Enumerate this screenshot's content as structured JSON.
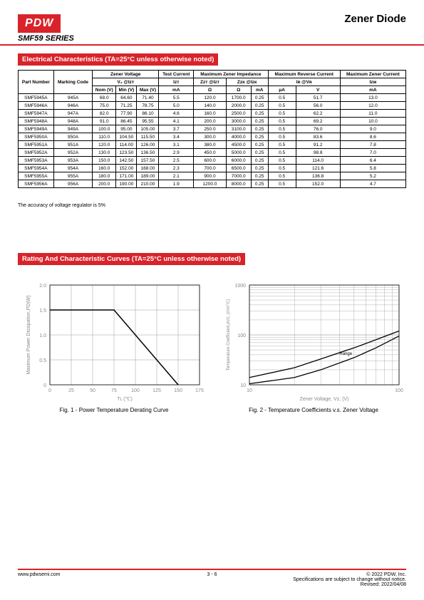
{
  "header": {
    "logo": "PDW",
    "title": "Zener Diode",
    "series": "SMF59 SERIES"
  },
  "section1": {
    "heading": "Electrical Characteristics (TA=25°C unless otherwise noted)"
  },
  "table": {
    "h_part": "Part Number",
    "h_mark": "Marking Code",
    "h_zv": "Zener Voltage",
    "h_test": "Test Current",
    "h_imp": "Maximum Zener Impedance",
    "h_rev": "Maximum Reverse Current",
    "h_max": "Maximum Zener Current",
    "h_vz": "V₂ @Iᴢᴛ",
    "h_izt": "Iᴢᴛ",
    "h_zzt": "Zᴢᴛ @Iᴢᴛ",
    "h_zzk": "Zᴢᴋ @Iᴢᴋ",
    "h_ir": "Iʀ @Vʀ",
    "h_izm": "Iᴢᴍ",
    "h_nom": "Nom (V)",
    "h_min": "Min (V)",
    "h_maxv": "Max (V)",
    "h_ma": "mA",
    "h_ohm": "Ω",
    "h_ua": "μA",
    "h_v": "V",
    "rows": [
      [
        "SMF5945A",
        "945A",
        "68.0",
        "64.60",
        "71.40",
        "5.5",
        "120.0",
        "1700.0",
        "0.25",
        "0.5",
        "51.7",
        "13.0"
      ],
      [
        "SMF5946A",
        "946A",
        "75.0",
        "71.25",
        "78.75",
        "5.0",
        "140.0",
        "2000.0",
        "0.25",
        "0.5",
        "56.0",
        "12.0"
      ],
      [
        "SMF5947A",
        "947A",
        "82.0",
        "77.90",
        "86.10",
        "4.6",
        "160.0",
        "2500.0",
        "0.25",
        "0.5",
        "62.2",
        "11.0"
      ],
      [
        "SMF5948A",
        "948A",
        "91.0",
        "86.45",
        "95.55",
        "4.1",
        "200.0",
        "3000.0",
        "0.25",
        "0.5",
        "69.2",
        "10.0"
      ],
      [
        "SMF5949A",
        "949A",
        "100.0",
        "95.00",
        "105.00",
        "3.7",
        "250.0",
        "3100.0",
        "0.25",
        "0.5",
        "76.0",
        "9.0"
      ],
      [
        "SMF5950A",
        "950A",
        "110.0",
        "104.50",
        "115.50",
        "3.4",
        "300.0",
        "4000.0",
        "0.25",
        "0.5",
        "83.6",
        "8.6"
      ],
      [
        "SMF5951A",
        "951A",
        "120.0",
        "114.00",
        "126.00",
        "3.1",
        "380.0",
        "4500.0",
        "0.25",
        "0.5",
        "91.2",
        "7.8"
      ],
      [
        "SMF5952A",
        "952A",
        "130.0",
        "123.50",
        "136.50",
        "2.9",
        "450.0",
        "5000.0",
        "0.25",
        "0.5",
        "98.8",
        "7.0"
      ],
      [
        "SMF5953A",
        "953A",
        "150.0",
        "142.50",
        "157.50",
        "2.5",
        "600.0",
        "6000.0",
        "0.25",
        "0.5",
        "114.0",
        "6.4"
      ],
      [
        "SMF5954A",
        "954A",
        "160.0",
        "152.00",
        "168.00",
        "2.3",
        "700.0",
        "6500.0",
        "0.25",
        "0.5",
        "121.6",
        "5.8"
      ],
      [
        "SMF5955A",
        "955A",
        "180.0",
        "171.00",
        "189.00",
        "2.1",
        "900.0",
        "7000.0",
        "0.25",
        "0.5",
        "136.8",
        "5.2"
      ],
      [
        "SMF5956A",
        "956A",
        "200.0",
        "190.00",
        "210.00",
        "1.9",
        "1200.0",
        "8000.0",
        "0.25",
        "0.5",
        "152.0",
        "4.7"
      ]
    ]
  },
  "note": "The accuracy of voltage regulator is 5%",
  "section2": {
    "heading": "Rating And Characteristic Curves (TA=25°C unless otherwise noted)"
  },
  "chart1": {
    "ylabel": "Maximum Power Dissipation,PD(W)",
    "xlabel": "Tʟ  (℃)",
    "yticks": [
      "0",
      "0.5",
      "1.0",
      "1.5",
      "2.0"
    ],
    "xticks": [
      "0",
      "25",
      "50",
      "75",
      "100",
      "125",
      "150",
      "175"
    ],
    "caption": "Fig. 1 - Power Temperature Derating Curve",
    "line_color": "#000000",
    "grid_color": "#808080",
    "data": [
      [
        0,
        1.5
      ],
      [
        75,
        1.5
      ],
      [
        150,
        0
      ]
    ]
  },
  "chart2": {
    "ylabel": "Temperature Coefficient,αVz, (mV/°C)",
    "xlabel": "Zener Voltage, Vᴢ, (V)",
    "yticks": [
      "10",
      "100",
      "1000"
    ],
    "xticks": [
      "10",
      "100"
    ],
    "caption": "Fig. 2 - Temperature Coefficients v.s. Zener Voltage",
    "range_label": "Range",
    "line_color": "#000000",
    "grid_color": "#808080"
  },
  "footer": {
    "url": "www.pdwsemi.com",
    "page": "3 - 6",
    "copyright": "© 2022 PDW, Inc.",
    "disclaimer": "Specifications are subject to change without notice.",
    "revised": "Revised: 2022/04/08"
  }
}
